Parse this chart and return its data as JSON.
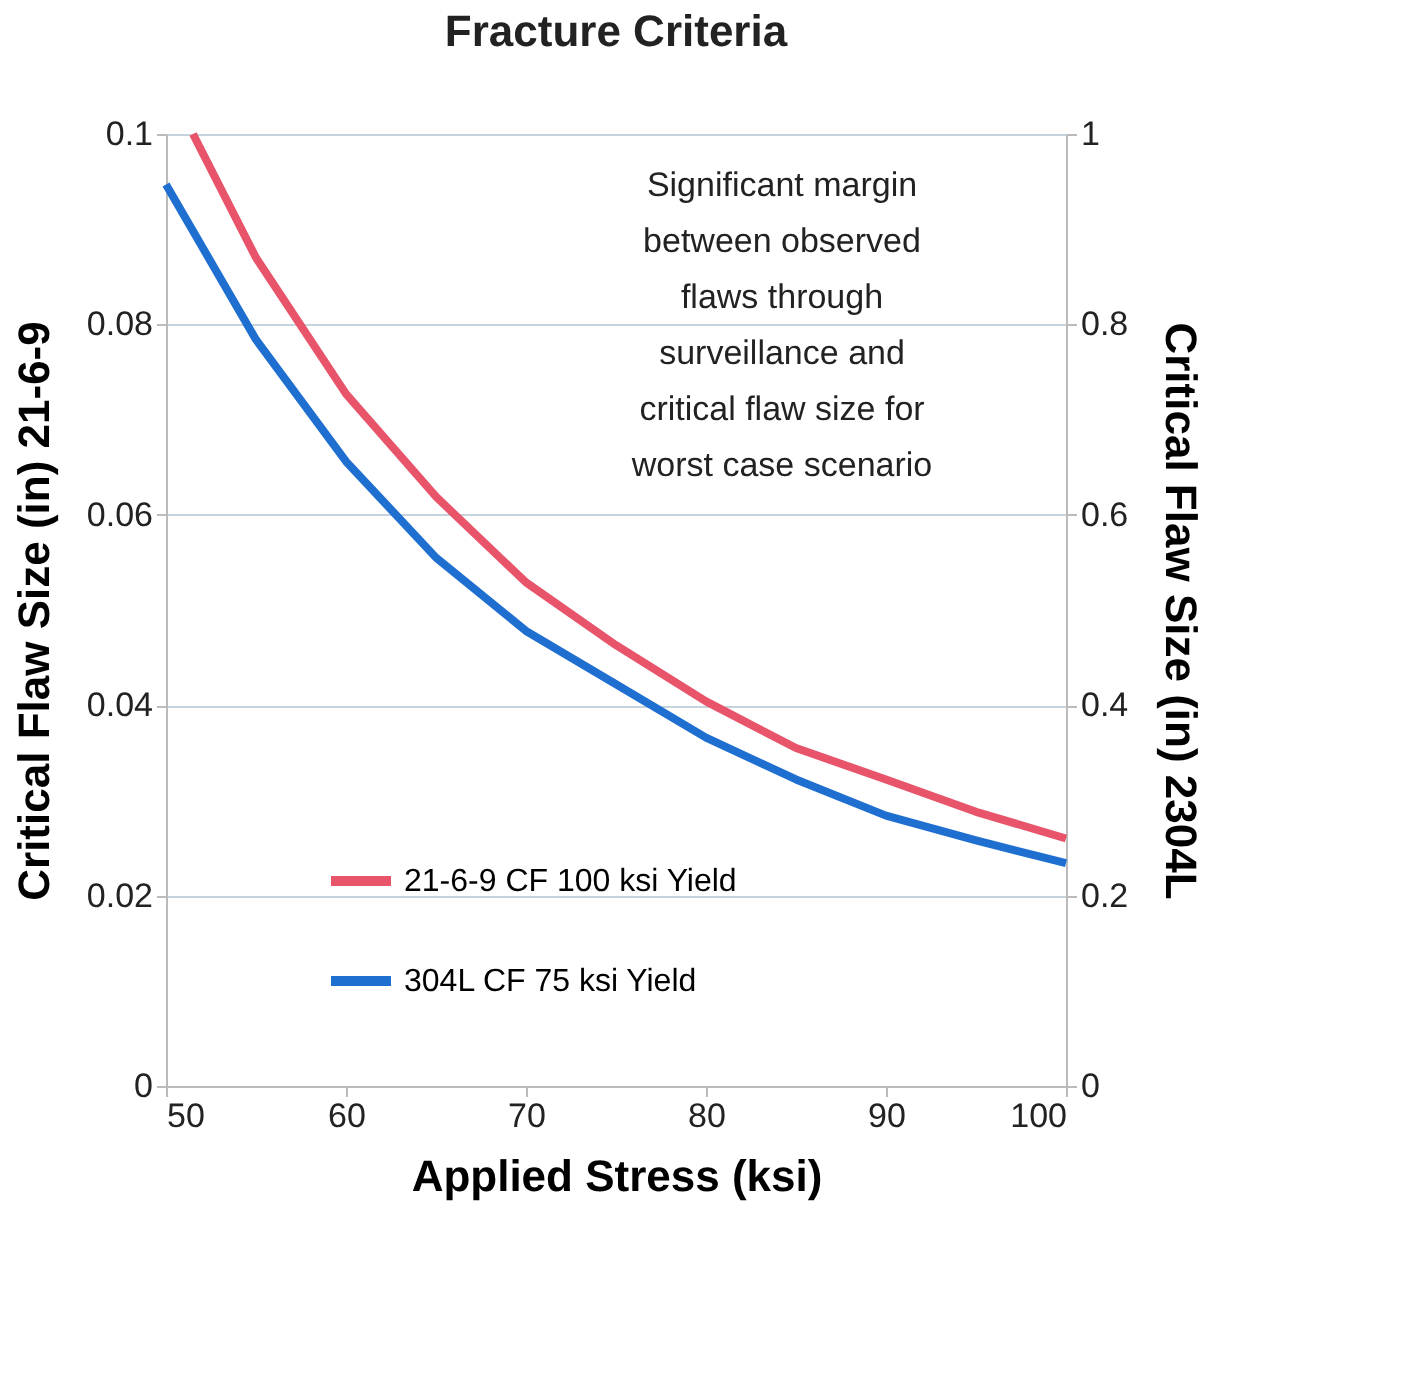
{
  "chart_data": {
    "type": "line",
    "title": "Fracture Criteria",
    "xlabel": "Applied Stress (ksi)",
    "ylabel": "Critical Flaw Size (in) 21-6-9",
    "y2label": "Critical Flaw Size (in) 2304L",
    "xlim": [
      50,
      100
    ],
    "xticks": [
      50,
      60,
      70,
      80,
      90,
      100
    ],
    "ylim": [
      0,
      0.1
    ],
    "yticks": [
      0,
      0.02,
      0.04,
      0.06,
      0.08,
      0.1
    ],
    "y2lim": [
      0,
      1
    ],
    "y2ticks": [
      0,
      0.2,
      0.4,
      0.6,
      0.8,
      1
    ],
    "grid": "y",
    "legend": "bottom left",
    "marker": "none",
    "line_style": "solid",
    "annotations": [
      "Significant margin\nbetween observed\nflaws through\nsurveillance and\ncritical flaw size for\nworst case scenario"
    ],
    "series": [
      {
        "name": "21-6-9 CF 100 ksi Yield",
        "color": "#e8546a",
        "x": [
          51.5,
          55,
          60,
          65,
          70,
          75,
          80,
          85,
          90,
          95,
          100
        ],
        "values": [
          0.1,
          0.087,
          0.0727,
          0.0619,
          0.0529,
          0.0463,
          0.0404,
          0.0355,
          0.0322,
          0.0288,
          0.026
        ]
      },
      {
        "name": "304L CF 75 ksi Yield",
        "color": "#1f6fd1",
        "axis": "y2",
        "x": [
          50,
          55,
          60,
          65,
          70,
          75,
          80,
          85,
          90,
          95,
          100
        ],
        "values": [
          0.947,
          0.784,
          0.656,
          0.555,
          0.478,
          0.422,
          0.366,
          0.322,
          0.284,
          0.258,
          0.234
        ]
      }
    ]
  }
}
